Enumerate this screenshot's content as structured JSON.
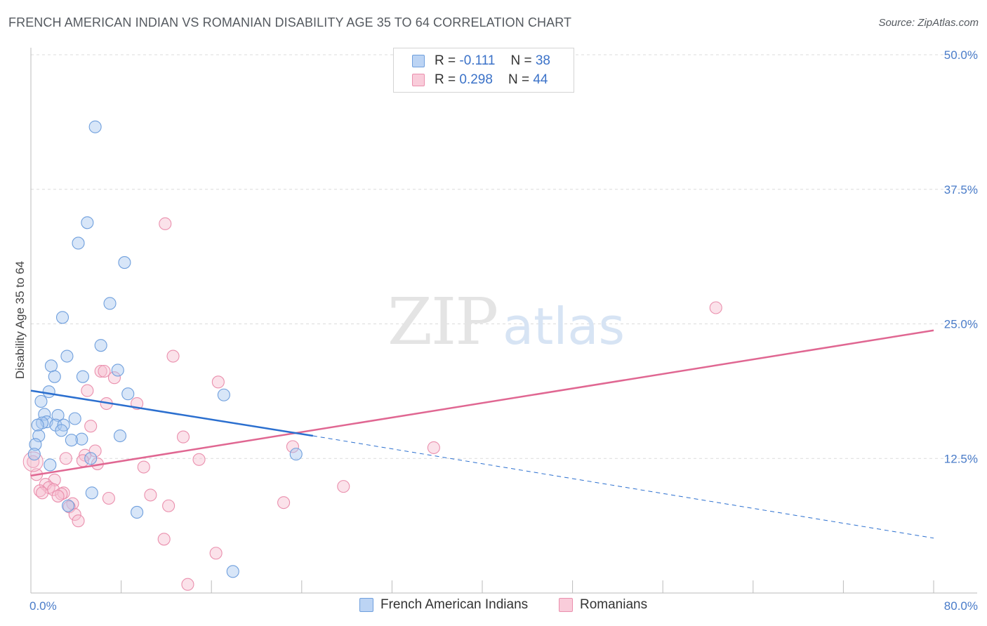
{
  "title": "FRENCH AMERICAN INDIAN VS ROMANIAN DISABILITY AGE 35 TO 64 CORRELATION CHART",
  "source": "Source: ZipAtlas.com",
  "watermark": {
    "zip": "ZIP",
    "atlas": "atlas"
  },
  "legend": {
    "rows": [
      {
        "r_label": "R =",
        "r_value": "-0.111",
        "n_label": "N =",
        "n_value": "38"
      },
      {
        "r_label": "R =",
        "r_value": "0.298",
        "n_label": "N =",
        "n_value": "44"
      }
    ]
  },
  "colors": {
    "blue_fill": "#a9c8f0",
    "blue_stroke": "#6f9fdd",
    "blue_line": "#2b6fcf",
    "pink_fill": "#f6bfd0",
    "pink_stroke": "#ea8fad",
    "pink_line": "#e06792",
    "tick": "#4a7cc9",
    "grid": "#dcdcdc"
  },
  "chart_data": {
    "type": "scatter",
    "title": "FRENCH AMERICAN INDIAN VS ROMANIAN DISABILITY AGE 35 TO 64 CORRELATION CHART",
    "xlabel": "",
    "ylabel": "Disability Age 35 to 64",
    "xlim": [
      0,
      80
    ],
    "ylim": [
      0,
      50
    ],
    "x_tick_labels": [
      "0.0%",
      "80.0%"
    ],
    "y_ticks": [
      12.5,
      25.0,
      37.5,
      50.0
    ],
    "y_tick_labels": [
      "12.5%",
      "25.0%",
      "37.5%",
      "50.0%"
    ],
    "grid": true,
    "legend_position": "top-center",
    "series": [
      {
        "name": "French American Indians",
        "r": -0.111,
        "n": 38,
        "points": [
          [
            5.7,
            43.3
          ],
          [
            5.0,
            34.4
          ],
          [
            4.2,
            32.5
          ],
          [
            8.3,
            30.7
          ],
          [
            7.0,
            26.9
          ],
          [
            2.8,
            25.6
          ],
          [
            6.2,
            23.0
          ],
          [
            3.2,
            22.0
          ],
          [
            1.8,
            21.1
          ],
          [
            7.7,
            20.7
          ],
          [
            2.1,
            20.1
          ],
          [
            4.6,
            20.1
          ],
          [
            1.6,
            18.7
          ],
          [
            8.6,
            18.5
          ],
          [
            17.1,
            18.4
          ],
          [
            0.9,
            17.8
          ],
          [
            1.2,
            16.6
          ],
          [
            2.4,
            16.5
          ],
          [
            3.9,
            16.2
          ],
          [
            1.4,
            15.9
          ],
          [
            1.0,
            15.8
          ],
          [
            0.6,
            15.6
          ],
          [
            2.2,
            15.6
          ],
          [
            2.9,
            15.6
          ],
          [
            2.7,
            15.1
          ],
          [
            0.7,
            14.6
          ],
          [
            7.9,
            14.6
          ],
          [
            4.5,
            14.3
          ],
          [
            3.6,
            14.2
          ],
          [
            0.4,
            13.8
          ],
          [
            0.3,
            12.9
          ],
          [
            23.5,
            12.9
          ],
          [
            5.3,
            12.5
          ],
          [
            1.7,
            11.9
          ],
          [
            5.4,
            9.3
          ],
          [
            3.3,
            8.1
          ],
          [
            9.4,
            7.5
          ],
          [
            17.9,
            2.0
          ]
        ]
      },
      {
        "name": "Romanians",
        "r": 0.298,
        "n": 44,
        "points": [
          [
            11.9,
            34.3
          ],
          [
            60.7,
            26.5
          ],
          [
            12.6,
            22.0
          ],
          [
            6.2,
            20.6
          ],
          [
            6.5,
            20.6
          ],
          [
            7.4,
            20.0
          ],
          [
            16.6,
            19.6
          ],
          [
            5.0,
            18.8
          ],
          [
            6.7,
            17.6
          ],
          [
            9.4,
            17.6
          ],
          [
            5.3,
            15.5
          ],
          [
            13.5,
            14.5
          ],
          [
            23.2,
            13.6
          ],
          [
            35.7,
            13.5
          ],
          [
            5.7,
            13.2
          ],
          [
            4.8,
            12.8
          ],
          [
            3.1,
            12.5
          ],
          [
            14.9,
            12.4
          ],
          [
            0.2,
            12.2
          ],
          [
            4.6,
            12.3
          ],
          [
            5.9,
            12.0
          ],
          [
            10.0,
            11.7
          ],
          [
            0.5,
            11.0
          ],
          [
            2.1,
            10.5
          ],
          [
            1.3,
            10.1
          ],
          [
            1.6,
            9.8
          ],
          [
            0.8,
            9.5
          ],
          [
            2.0,
            9.6
          ],
          [
            1.0,
            9.3
          ],
          [
            2.9,
            9.3
          ],
          [
            2.7,
            9.2
          ],
          [
            10.6,
            9.1
          ],
          [
            2.4,
            9.0
          ],
          [
            27.7,
            9.9
          ],
          [
            6.9,
            8.8
          ],
          [
            22.4,
            8.4
          ],
          [
            3.7,
            8.3
          ],
          [
            12.2,
            8.1
          ],
          [
            3.4,
            8.0
          ],
          [
            3.9,
            7.3
          ],
          [
            4.2,
            6.7
          ],
          [
            11.8,
            5.0
          ],
          [
            16.4,
            3.7
          ],
          [
            13.9,
            0.8
          ]
        ]
      }
    ],
    "trendlines": [
      {
        "series": "French American Indians",
        "solid": [
          [
            0,
            18.8
          ],
          [
            25,
            14.6
          ]
        ],
        "dashed": [
          [
            25,
            14.6
          ],
          [
            80,
            5.1
          ]
        ]
      },
      {
        "series": "Romanians",
        "solid": [
          [
            0,
            10.9
          ],
          [
            80,
            24.4
          ]
        ]
      }
    ]
  },
  "bottom_legend": [
    "French American Indians",
    "Romanians"
  ]
}
